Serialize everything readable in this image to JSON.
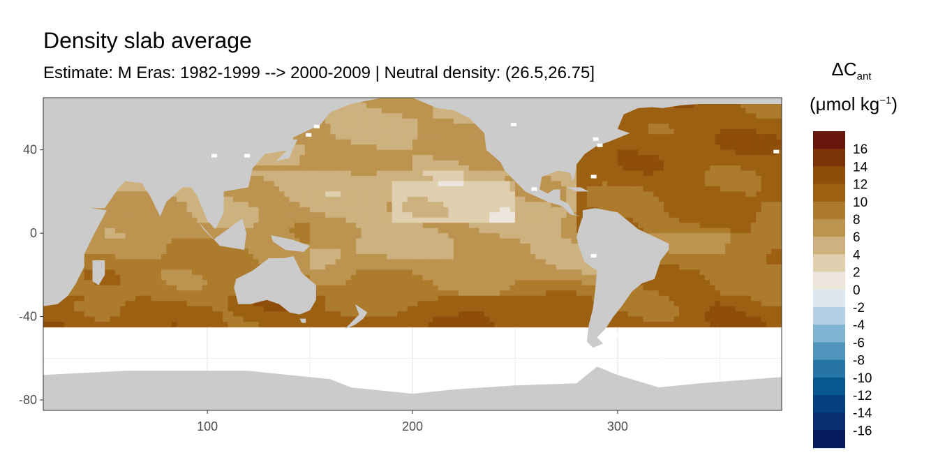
{
  "title": "Density slab average",
  "subtitle": "Estimate: M Eras: 1982-1999 --> 2000-2009 | Neutral density: (26.5,26.75]",
  "colors": {
    "land": "#cbcbcb",
    "no_data": "#ffffff",
    "grid": "#ebebeb",
    "panel_border": "#333333",
    "axis_text": "#4d4d4d"
  },
  "map_data": {
    "type": "gridded_map",
    "projection": "equirectangular, 0-360 longitude",
    "x_axis": {
      "ticks": [
        100,
        200,
        300
      ],
      "labels": [
        "100",
        "200",
        "300"
      ],
      "range": [
        20,
        380
      ]
    },
    "y_axis": {
      "ticks": [
        40,
        0,
        -40,
        -80
      ],
      "labels": [
        "40",
        "0",
        "-40",
        "-80"
      ],
      "range": [
        -85,
        65
      ]
    },
    "data_extent_south": -43,
    "fill_variable": "ΔCant",
    "fill_unit": "μmol kg⁻¹",
    "typical_values": {
      "north_atlantic": 12,
      "north_pacific": 6,
      "equatorial_pacific": 3,
      "southern_band_40S": 11,
      "indian_ocean": 8
    }
  },
  "legend": {
    "title_main": "ΔC",
    "title_sub": "ant",
    "unit_base": "(μmol kg",
    "unit_sup": "−1",
    "unit_close": ")",
    "position": "right",
    "bins": [
      {
        "color": "#67170c"
      },
      {
        "color": "#7c3307"
      },
      {
        "color": "#8f4d0a"
      },
      {
        "color": "#9c6012"
      },
      {
        "color": "#ad7b2c"
      },
      {
        "color": "#bd9350"
      },
      {
        "color": "#cdb27f"
      },
      {
        "color": "#e0cfae"
      },
      {
        "color": "#ede6dc"
      },
      {
        "color": "#dbe6ee"
      },
      {
        "color": "#b2cfe3"
      },
      {
        "color": "#81b3d2"
      },
      {
        "color": "#4e94bb"
      },
      {
        "color": "#2774a6"
      },
      {
        "color": "#07588f"
      },
      {
        "color": "#063f7e"
      },
      {
        "color": "#082e71"
      },
      {
        "color": "#061a5e"
      }
    ],
    "labels": [
      "16",
      "14",
      "12",
      "10",
      "8",
      "6",
      "4",
      "2",
      "0",
      "-2",
      "-4",
      "-6",
      "-8",
      "-10",
      "-12",
      "-14",
      "-16"
    ]
  }
}
